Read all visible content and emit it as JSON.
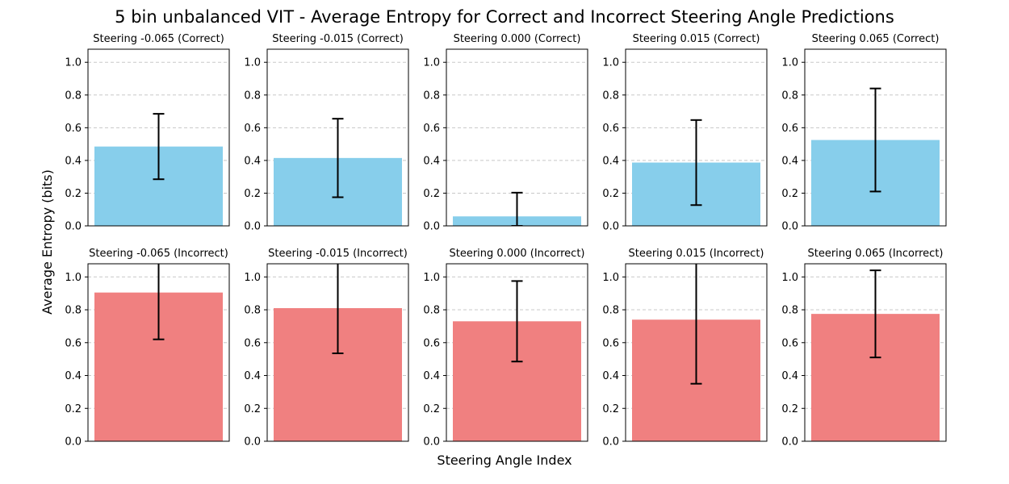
{
  "chart_data": {
    "type": "bar",
    "title": "5 bin unbalanced VIT - Average Entropy for Correct and Incorrect Steering Angle Predictions",
    "xlabel": "Steering Angle Index",
    "ylabel": "Average Entropy (bits)",
    "ylim": [
      0,
      1.08
    ],
    "yticks": [
      "0.0",
      "0.2",
      "0.4",
      "0.6",
      "0.8",
      "1.0"
    ],
    "grid": "y-dashed",
    "colors": {
      "correct": "#87CEEB",
      "incorrect": "#F08080",
      "error": "#000000",
      "grid": "#c8c8c8"
    },
    "panels": [
      {
        "title": "Steering -0.065 (Correct)",
        "value": 0.485,
        "err": 0.2,
        "kind": "correct"
      },
      {
        "title": "Steering -0.015 (Correct)",
        "value": 0.415,
        "err": 0.24,
        "kind": "correct"
      },
      {
        "title": "Steering 0.000 (Correct)",
        "value": 0.058,
        "err": 0.145,
        "kind": "correct"
      },
      {
        "title": "Steering 0.015 (Correct)",
        "value": 0.387,
        "err": 0.26,
        "kind": "correct"
      },
      {
        "title": "Steering 0.065 (Correct)",
        "value": 0.525,
        "err": 0.315,
        "kind": "correct"
      },
      {
        "title": "Steering -0.065 (Incorrect)",
        "value": 0.905,
        "err": 0.285,
        "kind": "incorrect"
      },
      {
        "title": "Steering -0.015 (Incorrect)",
        "value": 0.81,
        "err": 0.275,
        "kind": "incorrect"
      },
      {
        "title": "Steering 0.000 (Incorrect)",
        "value": 0.73,
        "err": 0.245,
        "kind": "incorrect"
      },
      {
        "title": "Steering 0.015 (Incorrect)",
        "value": 0.74,
        "err": 0.39,
        "kind": "incorrect"
      },
      {
        "title": "Steering 0.065 (Incorrect)",
        "value": 0.775,
        "err": 0.265,
        "kind": "incorrect"
      }
    ]
  }
}
